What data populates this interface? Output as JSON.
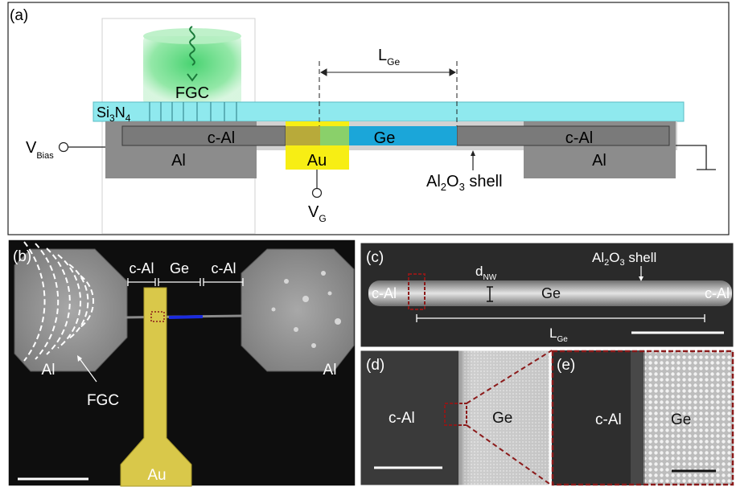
{
  "panels": {
    "a": {
      "label": "(a)",
      "si3n4": {
        "main": "Si",
        "sub1": "3",
        "mid": "N",
        "sub2": "4"
      },
      "fgc": "FGC",
      "l_ge": {
        "main": "L",
        "sub": "Ge"
      },
      "c_al_left": "c-Al",
      "c_al_right": "c-Al",
      "ge": "Ge",
      "al_left": "Al",
      "al_right": "Al",
      "au": "Au",
      "vbias": {
        "main": "V",
        "sub": "Bias"
      },
      "vg": {
        "main": "V",
        "sub": "G"
      },
      "shell": {
        "p1": "Al",
        "sub1": "2",
        "p2": "O",
        "sub2": "3",
        "p3": " shell"
      }
    },
    "b": {
      "label": "(b)",
      "c_al_1": "c-Al",
      "ge": "Ge",
      "c_al_2": "c-Al",
      "al_left": "Al",
      "al_right": "Al",
      "fgc": "FGC",
      "au": "Au"
    },
    "c": {
      "label": "(c)",
      "d_nw": {
        "main": "d",
        "sub": "NW"
      },
      "shell": {
        "p1": "Al",
        "sub1": "2",
        "p2": "O",
        "sub2": "3",
        "p3": " shell"
      },
      "c_al_left": "c-Al",
      "ge": "Ge",
      "c_al_right": "c-Al",
      "l_ge": {
        "main": "L",
        "sub": "Ge"
      }
    },
    "d": {
      "label": "(d)",
      "c_al": "c-Al",
      "ge": "Ge"
    },
    "e": {
      "label": "(e)",
      "c_al": "c-Al",
      "ge": "Ge"
    }
  },
  "colors": {
    "si3n4": "#8fe9ee",
    "al": "#8c8c8c",
    "c_al": "#7a7a7a",
    "ge": "#1ba6d9",
    "au": "#f7ee14",
    "fgc_glow": "#5fd37a",
    "au_sem": "#d9c84a",
    "nw_ge_sem": "#1b2ce0",
    "scale_bar": "#ffffff",
    "highlight_box": "#8b1a1a"
  }
}
